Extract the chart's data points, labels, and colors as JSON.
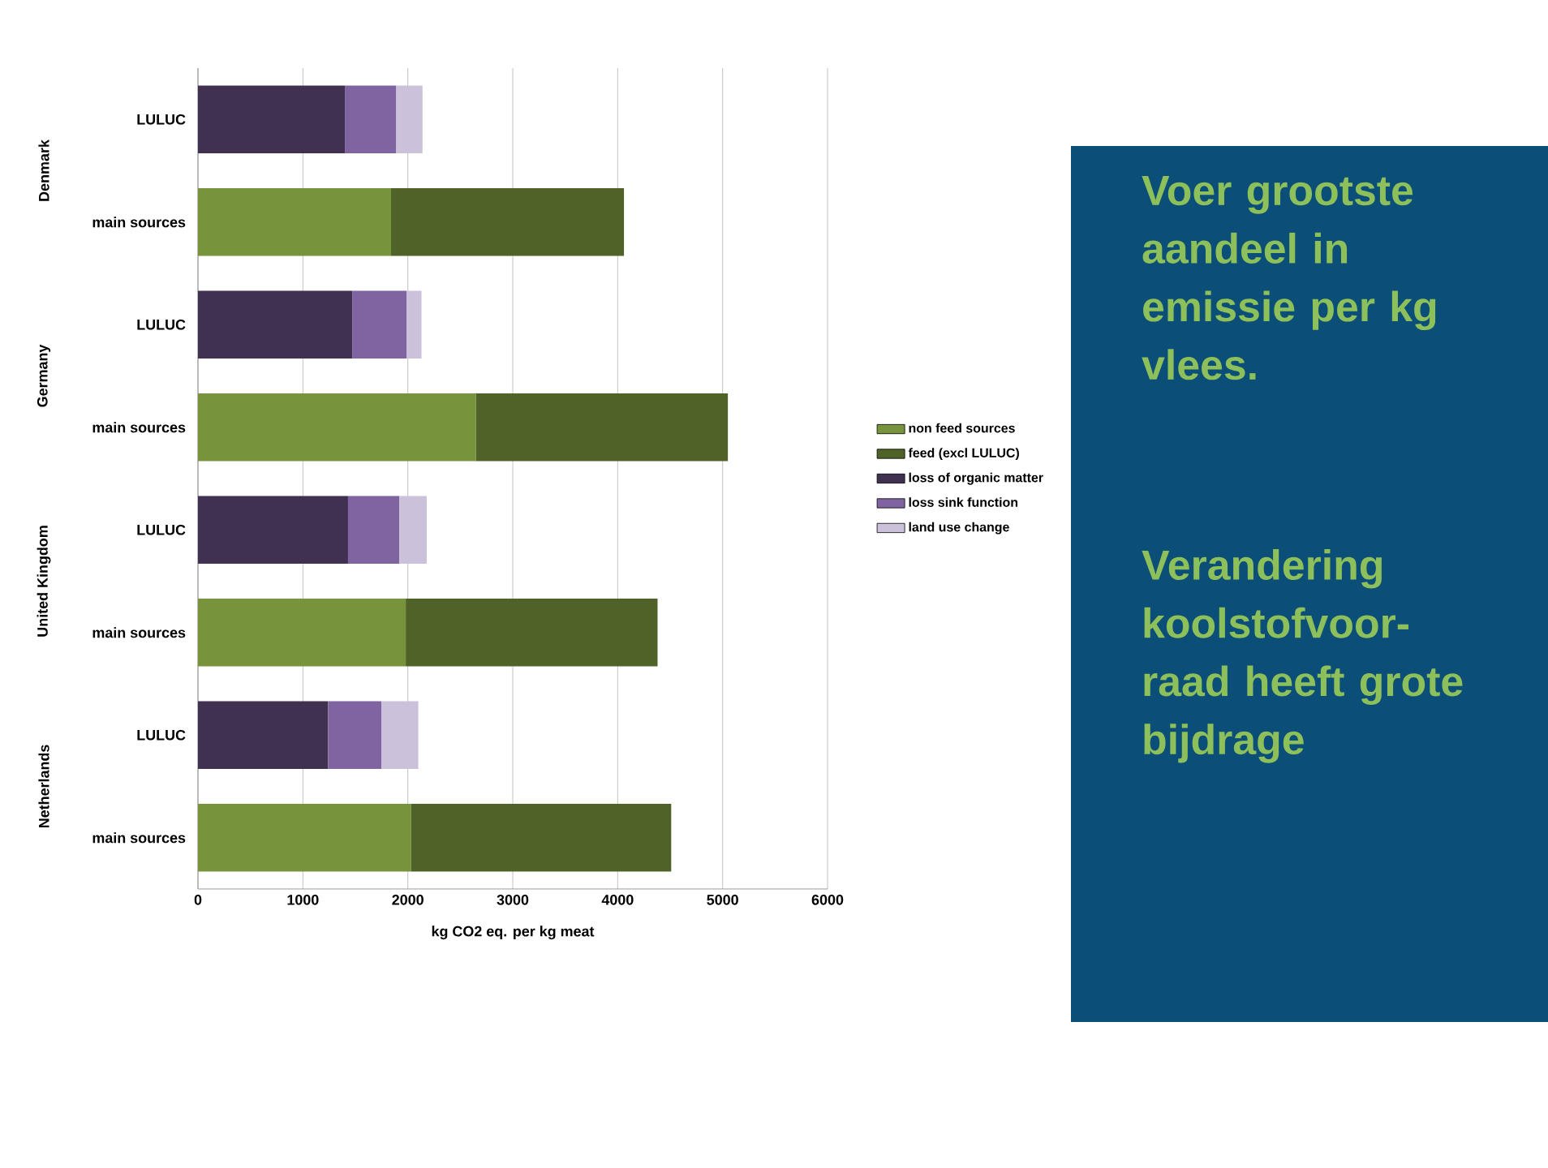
{
  "chart_data": {
    "type": "bar",
    "orientation": "horizontal",
    "stacked": true,
    "categories": [
      "LULUC",
      "main sources",
      "LULUC",
      "main sources",
      "LULUC",
      "main sources",
      "LULUC",
      "main sources"
    ],
    "series": [
      {
        "name": "non feed sources",
        "color": "#77933c",
        "values": [
          null,
          1840,
          null,
          2650,
          null,
          1980,
          null,
          2030
        ]
      },
      {
        "name": "feed (excl LULUC)",
        "color": "#4f6228",
        "values": [
          null,
          2220,
          null,
          2400,
          null,
          2400,
          null,
          2480
        ]
      },
      {
        "name": "loss of organic matter",
        "color": "#403151",
        "values": [
          1400,
          null,
          1470,
          null,
          1430,
          null,
          1240,
          null
        ]
      },
      {
        "name": "loss sink function",
        "color": "#8064a2",
        "values": [
          490,
          null,
          520,
          null,
          490,
          null,
          510,
          null
        ]
      },
      {
        "name": "land use change",
        "color": "#ccc1da",
        "values": [
          250,
          null,
          140,
          null,
          260,
          null,
          350,
          null
        ]
      }
    ],
    "xlabel": "kg CO2 eq. per kg meat",
    "xlim": [
      0,
      6000
    ],
    "xticks": [
      0,
      1000,
      2000,
      3000,
      4000,
      5000,
      6000
    ],
    "grid": "x",
    "legend": "right",
    "annotations": [
      "Denmark",
      "Germany",
      "United Kingdom",
      "Netherlands",
      "Voer grootste aandeel in emissie per kg vlees.",
      "Verandering koolstofvoor-raad heeft grote bijdrage"
    ]
  }
}
